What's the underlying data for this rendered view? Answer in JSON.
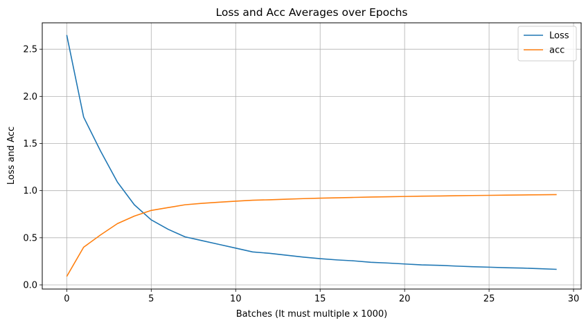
{
  "chart_data": {
    "type": "line",
    "title": "Loss and Acc Averages over Epochs",
    "xlabel": "Batches (It must multiple x 1000)",
    "ylabel": "Loss and Acc",
    "xlim": [
      -1.45,
      30.45
    ],
    "ylim": [
      -0.044,
      2.78
    ],
    "xticks": [
      0,
      5,
      10,
      15,
      20,
      25,
      30
    ],
    "xtick_labels": [
      "0",
      "5",
      "10",
      "15",
      "20",
      "25",
      "30"
    ],
    "yticks": [
      0.0,
      0.5,
      1.0,
      1.5,
      2.0,
      2.5
    ],
    "ytick_labels": [
      "0.0",
      "0.5",
      "1.0",
      "1.5",
      "2.0",
      "2.5"
    ],
    "grid": true,
    "legend_position": "top-right",
    "x": [
      0,
      1,
      2,
      3,
      4,
      5,
      6,
      7,
      8,
      9,
      10,
      11,
      12,
      13,
      14,
      15,
      16,
      17,
      18,
      19,
      20,
      21,
      22,
      23,
      24,
      25,
      26,
      27,
      28,
      29
    ],
    "series": [
      {
        "name": "Loss",
        "color": "#1f77b4",
        "values": [
          2.65,
          1.78,
          1.42,
          1.09,
          0.85,
          0.69,
          0.59,
          0.51,
          0.47,
          0.43,
          0.39,
          0.35,
          0.335,
          0.315,
          0.295,
          0.278,
          0.265,
          0.255,
          0.24,
          0.232,
          0.222,
          0.212,
          0.208,
          0.2,
          0.193,
          0.188,
          0.182,
          0.178,
          0.172,
          0.165
        ]
      },
      {
        "name": "acc",
        "color": "#ff7f0e",
        "values": [
          0.09,
          0.4,
          0.53,
          0.65,
          0.73,
          0.79,
          0.82,
          0.85,
          0.865,
          0.877,
          0.888,
          0.898,
          0.903,
          0.909,
          0.915,
          0.92,
          0.924,
          0.928,
          0.932,
          0.935,
          0.938,
          0.941,
          0.943,
          0.946,
          0.948,
          0.95,
          0.952,
          0.954,
          0.956,
          0.958
        ]
      }
    ]
  }
}
